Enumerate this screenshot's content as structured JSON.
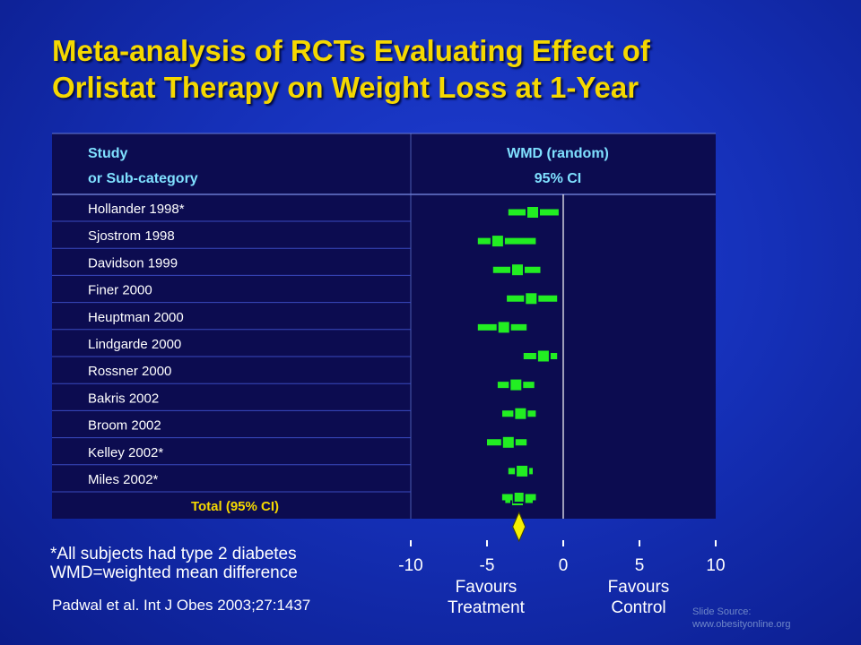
{
  "title": {
    "line1": "Meta-analysis of RCTs Evaluating Effect of",
    "line2": "Orlistat Therapy on Weight Loss at 1-Year"
  },
  "table_header": {
    "study_line1": "Study",
    "study_line2": "or Sub-category",
    "wmd_line1": "WMD (random)",
    "wmd_line2": "95% CI"
  },
  "notes": {
    "line1": "*All subjects had type 2 diabetes",
    "line2": "WMD=weighted mean difference"
  },
  "citation": "Padwal et al. Int J Obes 2003;27:1437",
  "source": {
    "line1": "Slide Source:",
    "line2": "www.obesityonline.org"
  },
  "colors": {
    "title": "#f5d800",
    "header_text": "#7fe0ff",
    "marker": "#22ee22",
    "diamond": "#f5f000",
    "table_bg": "#0c0c50"
  },
  "chart_data": {
    "type": "forest",
    "xlim": [
      -10,
      10
    ],
    "xticks": [
      -10,
      -5,
      0,
      5,
      10
    ],
    "xtick_labels": [
      "-10",
      "-5",
      "0",
      "5",
      "10"
    ],
    "left_label": [
      "Favours",
      "Treatment"
    ],
    "right_label": [
      "Favours",
      "Control"
    ],
    "studies": [
      {
        "name": "Hollander 1998*",
        "estimate": -2.0,
        "lower": -3.6,
        "upper": -0.3
      },
      {
        "name": "Sjostrom 1998",
        "estimate": -4.3,
        "lower": -5.6,
        "upper": -1.8
      },
      {
        "name": "Davidson 1999",
        "estimate": -3.0,
        "lower": -4.6,
        "upper": -1.5
      },
      {
        "name": "Finer 2000",
        "estimate": -2.1,
        "lower": -3.7,
        "upper": -0.4
      },
      {
        "name": "Heuptman 2000",
        "estimate": -3.9,
        "lower": -5.6,
        "upper": -2.4
      },
      {
        "name": "Lindgarde 2000",
        "estimate": -1.3,
        "lower": -2.6,
        "upper": -0.4
      },
      {
        "name": "Rossner 2000",
        "estimate": -3.1,
        "lower": -4.3,
        "upper": -1.9
      },
      {
        "name": "Bakris  2002",
        "estimate": -2.8,
        "lower": -4.0,
        "upper": -1.8
      },
      {
        "name": "Broom 2002",
        "estimate": -3.6,
        "lower": -5.0,
        "upper": -2.4
      },
      {
        "name": "Kelley 2002*",
        "estimate": -2.7,
        "lower": -3.6,
        "upper": -2.0
      },
      {
        "name": "Miles 2002*",
        "estimate": -3.0,
        "lower": -3.8,
        "upper": -2.0
      }
    ],
    "total": {
      "name": "Total (95% CI)",
      "estimate": -2.9,
      "lower": -3.3,
      "upper": -2.5
    }
  }
}
